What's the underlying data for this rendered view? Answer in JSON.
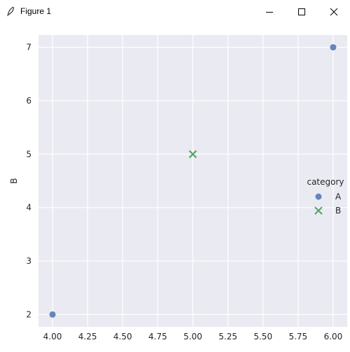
{
  "window": {
    "title": "Figure 1",
    "icons": {
      "app": "feather-icon",
      "minimize": "minimize-icon",
      "maximize": "maximize-icon",
      "close": "close-icon"
    }
  },
  "chart_data": {
    "type": "scatter",
    "xlabel": "",
    "ylabel": "B",
    "xlim": [
      3.9,
      6.1
    ],
    "ylim": [
      1.77,
      7.23
    ],
    "xticks": [
      "4.00",
      "4.25",
      "4.50",
      "4.75",
      "5.00",
      "5.25",
      "5.50",
      "5.75",
      "6.00"
    ],
    "yticks": [
      "2",
      "3",
      "4",
      "5",
      "6",
      "7"
    ],
    "grid": true,
    "background": "#eaeaf2",
    "legend": {
      "title": "category",
      "placement": "center-right"
    },
    "series": [
      {
        "name": "A",
        "marker": "circle",
        "color": "#4c72b0",
        "x": [
          4.0,
          6.0
        ],
        "y": [
          2,
          7
        ]
      },
      {
        "name": "B",
        "marker": "x",
        "color": "#55a868",
        "x": [
          5.0
        ],
        "y": [
          5
        ]
      }
    ]
  }
}
